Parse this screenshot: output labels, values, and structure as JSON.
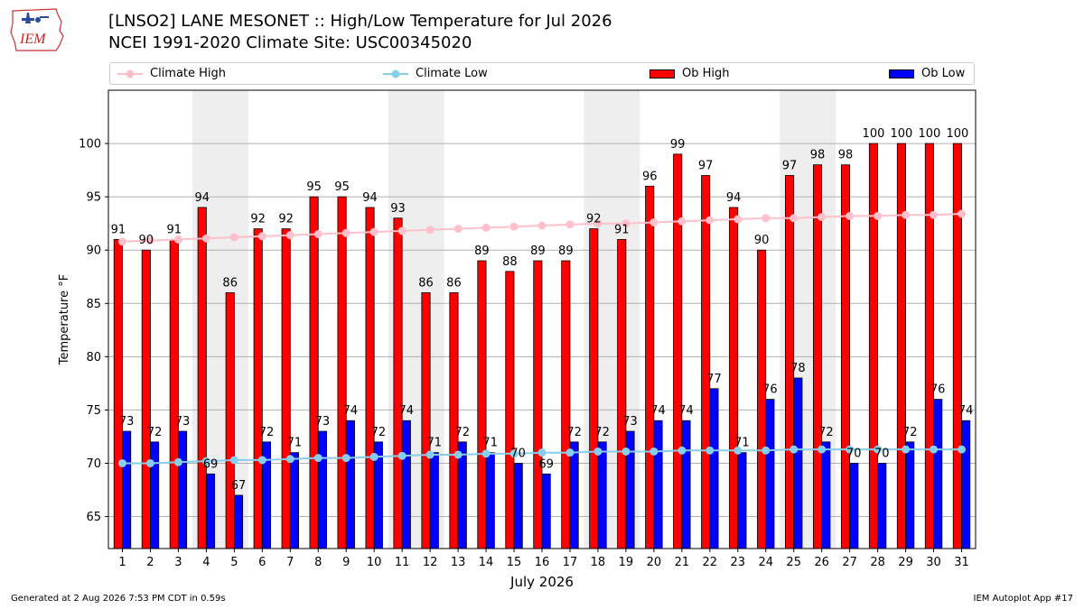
{
  "header": {
    "title": "[LNSO2] LANE MESONET :: High/Low Temperature for Jul 2026",
    "subtitle": "NCEI 1991-2020 Climate Site: USC00345020",
    "logo_text": "IEM"
  },
  "footer": {
    "generated": "Generated at 2 Aug 2026 7:53 PM CDT in 0.59s",
    "app": "IEM Autoplot App #17"
  },
  "chart_data": {
    "type": "bar",
    "title": "[LNSO2] LANE MESONET :: High/Low Temperature for Jul 2026",
    "xlabel": "July 2026",
    "ylabel": "Temperature °F",
    "ylim": [
      62,
      105
    ],
    "yticks": [
      65,
      70,
      75,
      80,
      85,
      90,
      95,
      100
    ],
    "grid": true,
    "legend_position": "top",
    "shaded_weekend_days": [
      4,
      5,
      11,
      12,
      18,
      19,
      25,
      26
    ],
    "categories": [
      1,
      2,
      3,
      4,
      5,
      6,
      7,
      8,
      9,
      10,
      11,
      12,
      13,
      14,
      15,
      16,
      17,
      18,
      19,
      20,
      21,
      22,
      23,
      24,
      25,
      26,
      27,
      28,
      29,
      30,
      31
    ],
    "series": [
      {
        "name": "Ob High",
        "type": "bar",
        "color": "#ff0000",
        "values": [
          91,
          90,
          91,
          94,
          86,
          92,
          92,
          95,
          95,
          94,
          93,
          86,
          86,
          89,
          88,
          89,
          89,
          92,
          91,
          96,
          99,
          97,
          94,
          90,
          97,
          98,
          98,
          100,
          100,
          100,
          100
        ]
      },
      {
        "name": "Ob Low",
        "type": "bar",
        "color": "#0000ff",
        "values": [
          73,
          72,
          73,
          69,
          67,
          72,
          71,
          73,
          74,
          72,
          74,
          71,
          72,
          71,
          70,
          69,
          72,
          72,
          73,
          74,
          74,
          77,
          71,
          76,
          78,
          72,
          70,
          70,
          72,
          76,
          74
        ]
      },
      {
        "name": "Climate High",
        "type": "line",
        "color": "#ffc0cb",
        "values": [
          90.8,
          90.9,
          91.0,
          91.1,
          91.2,
          91.3,
          91.4,
          91.5,
          91.6,
          91.7,
          91.8,
          91.9,
          92.0,
          92.1,
          92.2,
          92.3,
          92.4,
          92.5,
          92.5,
          92.6,
          92.7,
          92.8,
          92.9,
          93.0,
          93.0,
          93.1,
          93.2,
          93.2,
          93.3,
          93.3,
          93.4
        ]
      },
      {
        "name": "Climate Low",
        "type": "line",
        "color": "#87ceeb",
        "values": [
          70.0,
          70.0,
          70.1,
          70.2,
          70.3,
          70.3,
          70.4,
          70.5,
          70.5,
          70.6,
          70.7,
          70.8,
          70.8,
          70.9,
          70.9,
          71.0,
          71.0,
          71.1,
          71.1,
          71.1,
          71.2,
          71.2,
          71.2,
          71.2,
          71.3,
          71.3,
          71.3,
          71.3,
          71.3,
          71.3,
          71.3
        ]
      }
    ]
  }
}
